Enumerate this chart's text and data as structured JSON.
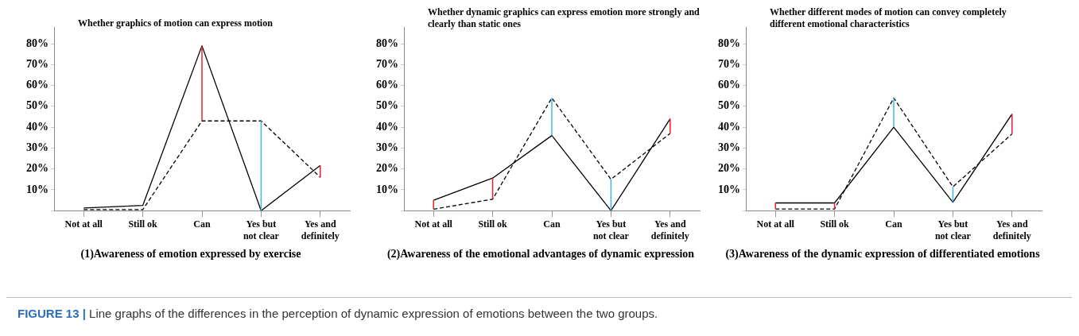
{
  "chart_data": [
    {
      "type": "line",
      "title": "Whether graphics of motion can express motion",
      "xlabel": "(1)Awareness of emotion expressed by exercise",
      "categories": [
        "Not at all",
        "Still ok",
        "Can",
        "Yes but not clear",
        "Yes and definitely"
      ],
      "series": [
        {
          "color": "#000000",
          "line_style": "solid",
          "values": [
            1.3,
            2.5,
            79,
            0,
            21.7
          ],
          "errors": [
            null,
            null,
            [
              43,
              79
            ],
            [
              0,
              43
            ],
            [
              16,
              21.7
            ]
          ]
        },
        {
          "color": "#000000",
          "line_style": "dashed",
          "values": [
            0.5,
            0.5,
            43,
            43,
            16
          ]
        }
      ],
      "ylim": [
        0,
        88
      ],
      "yticks": [
        {
          "value": 0,
          "label": null
        },
        {
          "value": 10,
          "label": "10%"
        },
        {
          "value": 20,
          "label": "20%"
        },
        {
          "value": 30,
          "label": "30%"
        },
        {
          "value": 40,
          "label": "40%"
        },
        {
          "value": 50,
          "label": "50%"
        },
        {
          "value": 60,
          "label": "60%"
        },
        {
          "value": 70,
          "label": "70%"
        },
        {
          "value": 80,
          "label": "80%"
        }
      ],
      "grid": false,
      "legend": false,
      "marker": "none",
      "annotations": [
        "FIGURE 13 | Line graphs of the differences in the perception of dynamic expression of emotions between the two groups."
      ]
    },
    {
      "type": "line",
      "title": "Whether dynamic graphics can express emotion more strongly and clearly than static ones",
      "xlabel": "(2)Awareness of the emotional advantages of dynamic expression",
      "categories": [
        "Not at all",
        "Still ok",
        "Can",
        "Yes but not clear",
        "Yes and definitely"
      ],
      "series": [
        {
          "color": "#000000",
          "line_style": "solid",
          "values": [
            5,
            15.6,
            36,
            0,
            44
          ],
          "errors": [
            [
              0.7,
              5
            ],
            [
              5.5,
              15.6
            ],
            [
              36,
              54
            ],
            [
              0,
              15
            ],
            [
              37,
              44
            ]
          ]
        },
        {
          "color": "#000000",
          "line_style": "dashed",
          "values": [
            0.7,
            5.5,
            54,
            15,
            37
          ]
        }
      ],
      "ylim": [
        0,
        88
      ],
      "yticks": [
        {
          "value": 0,
          "label": null
        },
        {
          "value": 10,
          "label": "10%"
        },
        {
          "value": 20,
          "label": "20%"
        },
        {
          "value": 30,
          "label": "30%"
        },
        {
          "value": 40,
          "label": "40%"
        },
        {
          "value": 50,
          "label": "50%"
        },
        {
          "value": 60,
          "label": "60%"
        },
        {
          "value": 70,
          "label": "70%"
        },
        {
          "value": 80,
          "label": "80%"
        }
      ],
      "grid": false,
      "legend": false,
      "marker": "none"
    },
    {
      "type": "line",
      "title": "Whether different modes of motion can convey completely different emotional characteristics",
      "xlabel": "(3)Awareness of the dynamic expression of differentiated emotions",
      "categories": [
        "Not at all",
        "Still ok",
        "Can",
        "Yes but not clear",
        "Yes and definitely"
      ],
      "series": [
        {
          "color": "#000000",
          "line_style": "solid",
          "values": [
            3.7,
            3.7,
            40,
            4,
            46.3
          ],
          "errors": [
            [
              0.8,
              3.7
            ],
            [
              0.8,
              3.7
            ],
            [
              40,
              54
            ],
            [
              4,
              11.4
            ],
            [
              36.8,
              46.3
            ]
          ]
        },
        {
          "color": "#000000",
          "line_style": "dashed",
          "values": [
            0.8,
            0.8,
            54,
            11.4,
            36.8
          ]
        }
      ],
      "ylim": [
        0,
        88
      ],
      "yticks": [
        {
          "value": 0,
          "label": null
        },
        {
          "value": 10,
          "label": "10%"
        },
        {
          "value": 20,
          "label": "20%"
        },
        {
          "value": 30,
          "label": "30%"
        },
        {
          "value": 40,
          "label": "40%"
        },
        {
          "value": 50,
          "label": "50%"
        },
        {
          "value": 60,
          "label": "60%"
        },
        {
          "value": 70,
          "label": "70%"
        },
        {
          "value": 80,
          "label": "80%"
        }
      ],
      "grid": false,
      "legend": false,
      "marker": "none"
    }
  ]
}
